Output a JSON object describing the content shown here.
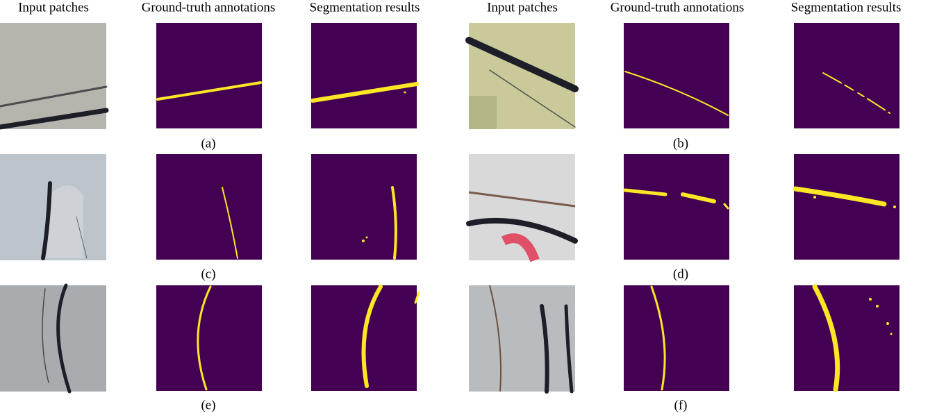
{
  "columns": [
    "Input patches",
    "Ground-truth annotations",
    "Segmentation results",
    "Input patches",
    "Ground-truth annotations",
    "Segmentation results"
  ],
  "labels": [
    "(a)",
    "(b)",
    "(c)",
    "(d)",
    "(e)",
    "(f)"
  ]
}
